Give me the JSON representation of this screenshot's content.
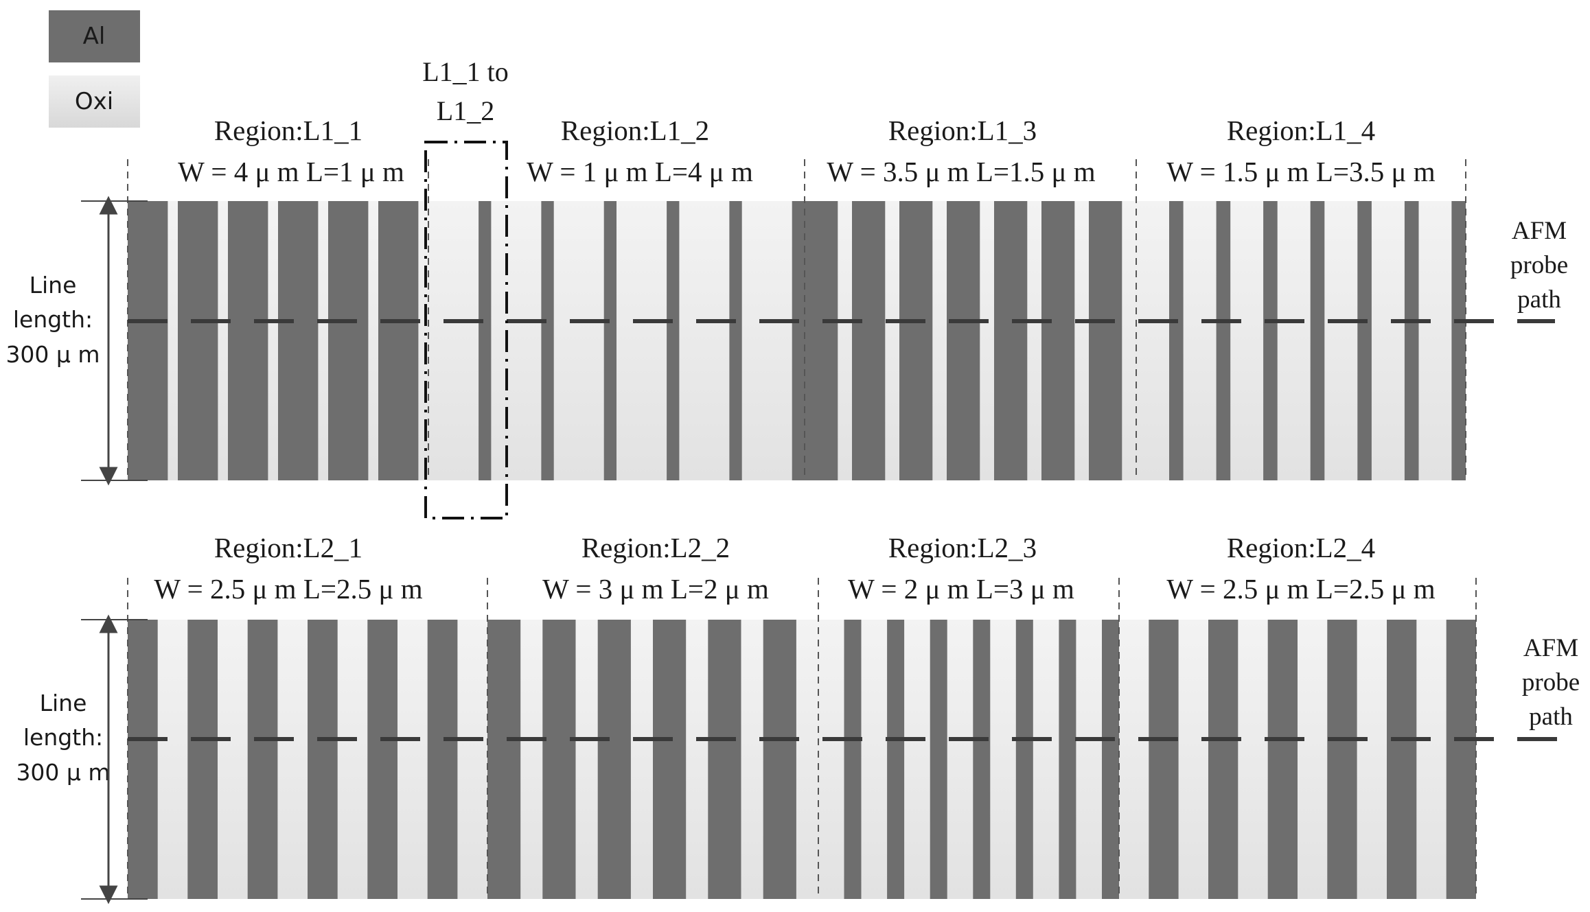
{
  "legend": [
    {
      "label": "Al",
      "color": "#6e6e6e",
      "text_color": "#111111"
    },
    {
      "label": "Oxi",
      "color": "#e4e4e4",
      "text_color": "#111111"
    }
  ],
  "colors": {
    "al": "#6e6e6e",
    "oxi": "#ececec"
  },
  "transition_label": [
    "L1_1 to",
    "L1_2"
  ],
  "rows": [
    {
      "id": "L1",
      "line_length_label": [
        "Line",
        "length:",
        "300 μ m"
      ],
      "probe_label": [
        "AFM",
        "probe",
        "path"
      ],
      "regions": [
        {
          "name": "Region:L1_1",
          "params": "W = 4 μ m  L=1 μ m",
          "w": 4,
          "l": 1
        },
        {
          "name": "Region:L1_2",
          "params": "W = 1 μ m  L=4 μ m",
          "w": 1,
          "l": 4
        },
        {
          "name": "Region:L1_3",
          "params": "W = 3.5 μ m  L=1.5 μ m",
          "w": 3.5,
          "l": 1.5
        },
        {
          "name": "Region:L1_4",
          "params": "W = 1.5 μ m  L=3.5 μ m",
          "w": 1.5,
          "l": 3.5
        }
      ]
    },
    {
      "id": "L2",
      "line_length_label": [
        "Line",
        "length:",
        "300 μ m"
      ],
      "probe_label": [
        "AFM",
        "probe",
        "path"
      ],
      "regions": [
        {
          "name": "Region:L2_1",
          "params": "W = 2.5 μ m  L=2.5 μ m",
          "w": 2.5,
          "l": 2.5
        },
        {
          "name": "Region:L2_2",
          "params": "W = 3 μ m  L=2 μ m",
          "w": 3,
          "l": 2
        },
        {
          "name": "Region:L2_3",
          "params": "W = 2 μ m  L=3 μ m",
          "w": 2,
          "l": 3
        },
        {
          "name": "Region:L2_4",
          "params": "W = 2.5 μ m  L=2.5 μ m",
          "w": 2.5,
          "l": 2.5
        }
      ]
    }
  ]
}
